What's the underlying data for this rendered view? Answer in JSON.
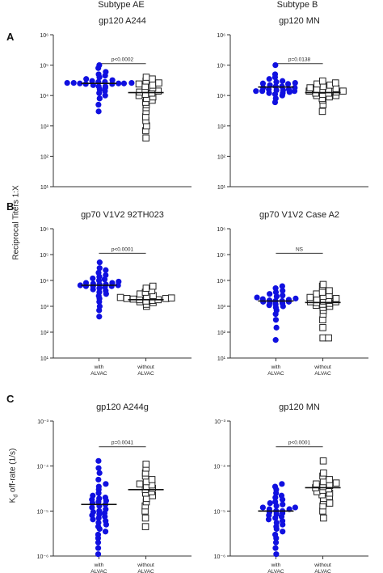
{
  "column_titles": [
    "Subtype AE",
    "Subtype B"
  ],
  "row_labels": [
    "A",
    "B",
    "C"
  ],
  "y_axis_title_rows_ab": "Reciprocal Titers 1:X",
  "y_axis_title_row_c_prefix": "K",
  "y_axis_title_row_c_sub": "d",
  "y_axis_title_row_c_suffix": " off-rate (1/s)",
  "colors": {
    "with": "#1010e0",
    "without": "#ffffff",
    "stroke": "#222222"
  },
  "chart_data": [
    {
      "type": "scatter",
      "title": "gp120 A244",
      "y_scale": "log",
      "ylim": [
        10,
        1000000
      ],
      "y_ticks": [
        "10¹",
        "10²",
        "10³",
        "10⁴",
        "10⁵",
        "10⁶"
      ],
      "categories": [
        "with ALVAC",
        "without ALVAC"
      ],
      "show_category_labels": false,
      "annotation": "p<0.0002",
      "series": [
        {
          "values": [
            3000,
            5000,
            8000,
            10000,
            12000,
            14000,
            16000,
            18000,
            20000,
            20000,
            22000,
            24000,
            24000,
            25000,
            25000,
            25000,
            26000,
            26000,
            26000,
            28000,
            28000,
            30000,
            32000,
            35000,
            40000,
            45000,
            50000,
            60000,
            80000,
            100000
          ],
          "bar": 25000
        },
        {
          "values": [
            400,
            700,
            1000,
            1500,
            2000,
            3000,
            4000,
            5000,
            6000,
            7000,
            8000,
            9000,
            10000,
            11000,
            12000,
            13000,
            14000,
            16000,
            18000,
            20000,
            22000,
            24000,
            26000,
            30000,
            35000,
            40000
          ],
          "bar": 12500
        }
      ]
    },
    {
      "type": "scatter",
      "title": "gp120 MN",
      "y_scale": "log",
      "ylim": [
        10,
        1000000
      ],
      "y_ticks": [
        "10¹",
        "10²",
        "10³",
        "10⁴",
        "10⁵",
        "10⁶"
      ],
      "categories": [
        "with ALVAC",
        "without ALVAC"
      ],
      "show_category_labels": false,
      "annotation": "p=0.0138",
      "series": [
        {
          "values": [
            6000,
            8000,
            10000,
            11000,
            12000,
            12000,
            13000,
            14000,
            14000,
            14000,
            15000,
            15000,
            16000,
            16000,
            18000,
            18000,
            20000,
            20000,
            22000,
            24000,
            25000,
            26000,
            28000,
            30000,
            35000,
            40000,
            50000,
            100000
          ],
          "bar": 19000
        },
        {
          "values": [
            3000,
            5000,
            7000,
            8000,
            9000,
            10000,
            10000,
            11000,
            12000,
            12000,
            13000,
            14000,
            14000,
            15000,
            16000,
            16000,
            17000,
            18000,
            20000,
            22000,
            24000,
            26000,
            30000
          ],
          "bar": 12500
        }
      ]
    },
    {
      "type": "scatter",
      "title": "gp70 V1V2 92TH023",
      "y_scale": "log",
      "ylim": [
        10,
        1000000
      ],
      "y_ticks": [
        "10¹",
        "10²",
        "10³",
        "10⁴",
        "10⁵",
        "10⁶"
      ],
      "categories": [
        "with ALVAC",
        "without ALVAC"
      ],
      "show_category_labels": true,
      "annotation": "p<0.0001",
      "series": [
        {
          "values": [
            400,
            700,
            1000,
            1500,
            2000,
            2500,
            3000,
            3500,
            4000,
            4500,
            5000,
            5500,
            6000,
            6000,
            6000,
            6500,
            6500,
            7000,
            7000,
            7500,
            8000,
            8000,
            9000,
            10000,
            11000,
            12000,
            14000,
            16000,
            20000,
            25000,
            30000,
            50000
          ],
          "bar": 6500
        },
        {
          "values": [
            1000,
            1200,
            1400,
            1500,
            1600,
            1700,
            1800,
            1800,
            1900,
            2000,
            2000,
            2100,
            2200,
            2400,
            2600,
            3000,
            3500,
            4000,
            5000,
            6000
          ],
          "bar": 1800
        }
      ]
    },
    {
      "type": "scatter",
      "title": "gp70 V1V2 Case A2",
      "y_scale": "log",
      "ylim": [
        10,
        1000000
      ],
      "y_ticks": [
        "10¹",
        "10²",
        "10³",
        "10⁴",
        "10⁵",
        "10⁶"
      ],
      "categories": [
        "with ALVAC",
        "without ALVAC"
      ],
      "show_category_labels": true,
      "annotation": "NS",
      "series": [
        {
          "values": [
            50,
            150,
            300,
            500,
            700,
            900,
            1000,
            1100,
            1200,
            1300,
            1400,
            1500,
            1500,
            1600,
            1600,
            1700,
            1800,
            1900,
            2000,
            2200,
            2400,
            2600,
            3000,
            3500,
            4000,
            5000,
            6000
          ],
          "bar": 1600
        },
        {
          "values": [
            60,
            60,
            150,
            300,
            500,
            700,
            900,
            1000,
            1100,
            1200,
            1300,
            1400,
            1500,
            1500,
            1600,
            1700,
            1800,
            2000,
            2200,
            2400,
            2600,
            3000,
            3500,
            4000,
            6000,
            7000
          ],
          "bar": 1400
        }
      ]
    },
    {
      "type": "scatter",
      "title": "gp120 A244g",
      "y_scale": "log",
      "ylim": [
        1e-06,
        0.001
      ],
      "y_ticks": [
        "10⁻⁶",
        "10⁻⁵",
        "10⁻⁴",
        "10⁻³"
      ],
      "categories": [
        "with ALVAC",
        "without ALVAC"
      ],
      "show_category_labels": true,
      "annotation": "p=0.0041",
      "series": [
        {
          "values": [
            1.1e-06,
            1.5e-06,
            2e-06,
            2.5e-06,
            3e-06,
            3.5e-06,
            4e-06,
            4.5e-06,
            5e-06,
            5.5e-06,
            6e-06,
            6.5e-06,
            7e-06,
            7.5e-06,
            8e-06,
            8.5e-06,
            9e-06,
            9.5e-06,
            1e-05,
            1.1e-05,
            1.2e-05,
            1.3e-05,
            1.4e-05,
            1.5e-05,
            1.6e-05,
            1.7e-05,
            1.8e-05,
            1.9e-05,
            2e-05,
            2.2e-05,
            2.5e-05,
            3e-05,
            3.5e-05,
            4e-05,
            5e-05,
            7e-05,
            9e-05,
            0.00013
          ],
          "bar": 1.4e-05
        },
        {
          "values": [
            4.5e-06,
            7e-06,
            1e-05,
            1.3e-05,
            1.6e-05,
            1.9e-05,
            2.2e-05,
            2.5e-05,
            2.7e-05,
            3e-05,
            3.2e-05,
            3.5e-05,
            3.8e-05,
            4e-05,
            4.5e-05,
            5e-05,
            6e-05,
            7e-05,
            9e-05,
            0.00011
          ],
          "bar": 3e-05
        }
      ]
    },
    {
      "type": "scatter",
      "title": "gp120 MN",
      "y_scale": "log",
      "ylim": [
        1e-06,
        0.001
      ],
      "y_ticks": [
        "10⁻⁶",
        "10⁻⁵",
        "10⁻⁴",
        "10⁻³"
      ],
      "categories": [
        "with ALVAC",
        "without ALVAC"
      ],
      "show_category_labels": true,
      "annotation": "p<0.0001",
      "series": [
        {
          "values": [
            1.1e-06,
            1.5e-06,
            2e-06,
            2.5e-06,
            3e-06,
            3.5e-06,
            4e-06,
            4.5e-06,
            5e-06,
            5.5e-06,
            6e-06,
            6.5e-06,
            7e-06,
            7.5e-06,
            8e-06,
            8.5e-06,
            9e-06,
            9.5e-06,
            1e-05,
            1e-05,
            1.1e-05,
            1.1e-05,
            1.2e-05,
            1.2e-05,
            1.3e-05,
            1.4e-05,
            1.5e-05,
            1.6e-05,
            1.8e-05,
            2e-05,
            2.2e-05,
            2.5e-05,
            3e-05,
            3.5e-05,
            4e-05
          ],
          "bar": 1e-05
        },
        {
          "values": [
            7e-06,
            1e-05,
            1.3e-05,
            1.5e-05,
            1.7e-05,
            1.9e-05,
            2.1e-05,
            2.3e-05,
            2.5e-05,
            2.7e-05,
            2.9e-05,
            3.1e-05,
            3.3e-05,
            3.5e-05,
            3.7e-05,
            4e-05,
            4.2e-05,
            4.5e-05,
            5e-05,
            6e-05,
            7e-05,
            0.00013
          ],
          "bar": 3.3e-05
        }
      ]
    }
  ]
}
